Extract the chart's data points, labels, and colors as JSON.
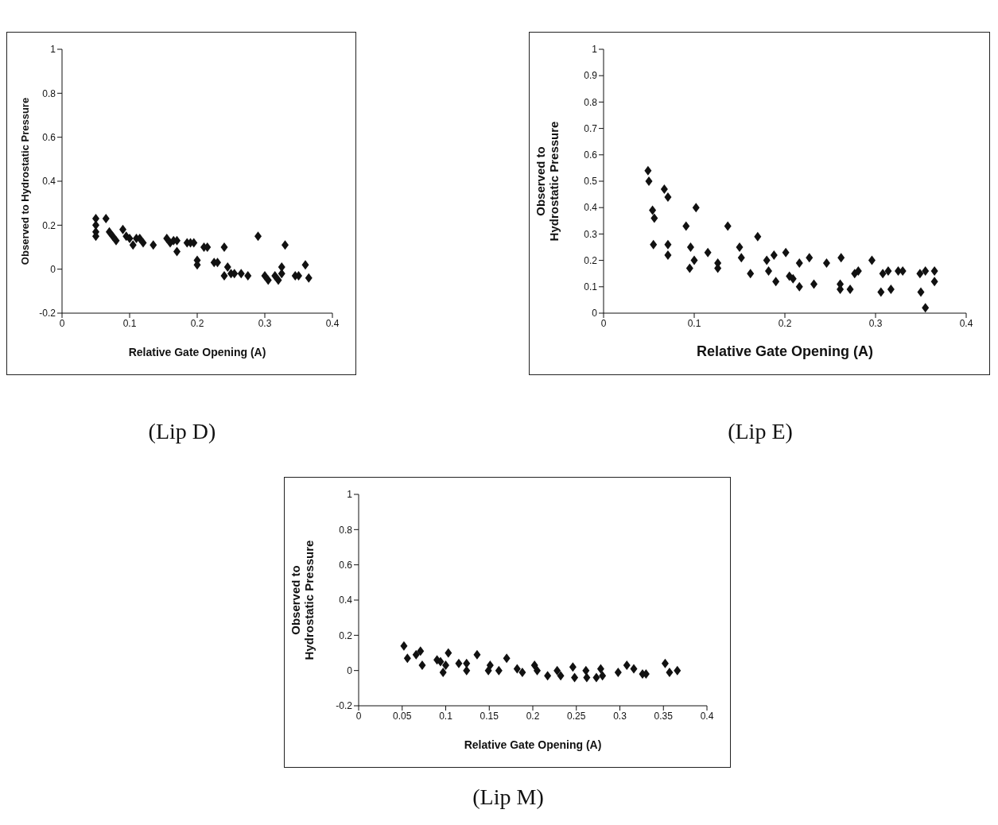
{
  "chart_data": [
    {
      "type": "scatter",
      "title": "(Lip D)",
      "xlabel": "Relative Gate Opening (A)",
      "ylabel": "Observed to Hydrostatic Pressure",
      "marker": "diamond",
      "grid": false,
      "xlim": [
        0,
        0.4
      ],
      "xticks": [
        0,
        0.1,
        0.2,
        0.3,
        0.4
      ],
      "ylim": [
        -0.2,
        1
      ],
      "yticks": [
        -0.2,
        0,
        0.2,
        0.4,
        0.6,
        0.8,
        1
      ],
      "series": [
        {
          "color": "#111111",
          "x": [
            0.05,
            0.05,
            0.05,
            0.05,
            0.065,
            0.07,
            0.075,
            0.08,
            0.09,
            0.095,
            0.1,
            0.105,
            0.11,
            0.115,
            0.12,
            0.135,
            0.155,
            0.16,
            0.165,
            0.17,
            0.17,
            0.185,
            0.19,
            0.195,
            0.2,
            0.2,
            0.21,
            0.215,
            0.225,
            0.23,
            0.24,
            0.24,
            0.245,
            0.25,
            0.255,
            0.265,
            0.275,
            0.29,
            0.3,
            0.305,
            0.315,
            0.32,
            0.325,
            0.325,
            0.33,
            0.345,
            0.35,
            0.36,
            0.365
          ],
          "values": [
            0.23,
            0.2,
            0.17,
            0.15,
            0.23,
            0.17,
            0.15,
            0.13,
            0.18,
            0.15,
            0.14,
            0.11,
            0.14,
            0.14,
            0.12,
            0.11,
            0.14,
            0.12,
            0.13,
            0.08,
            0.13,
            0.12,
            0.12,
            0.12,
            0.04,
            0.02,
            0.1,
            0.1,
            0.03,
            0.03,
            0.1,
            -0.03,
            0.01,
            -0.02,
            -0.02,
            -0.02,
            -0.03,
            0.15,
            -0.03,
            -0.05,
            -0.03,
            -0.05,
            -0.02,
            0.01,
            0.11,
            -0.03,
            -0.03,
            0.02,
            -0.04
          ]
        }
      ]
    },
    {
      "type": "scatter",
      "title": "(Lip E)",
      "xlabel": "Relative Gate Opening (A)",
      "ylabel": "Observed to Hydrostatic Pressure",
      "marker": "diamond",
      "grid": false,
      "xlim": [
        0,
        0.4
      ],
      "xticks": [
        0,
        0.1,
        0.2,
        0.3,
        0.4
      ],
      "ylim": [
        0,
        1
      ],
      "yticks": [
        0,
        0.1,
        0.2,
        0.3,
        0.4,
        0.5,
        0.6,
        0.7,
        0.8,
        0.9,
        1
      ],
      "series": [
        {
          "color": "#111111",
          "x": [
            0.049,
            0.05,
            0.067,
            0.071,
            0.054,
            0.056,
            0.055,
            0.071,
            0.071,
            0.102,
            0.091,
            0.096,
            0.095,
            0.1,
            0.115,
            0.126,
            0.126,
            0.137,
            0.15,
            0.152,
            0.162,
            0.17,
            0.18,
            0.182,
            0.188,
            0.19,
            0.201,
            0.205,
            0.209,
            0.216,
            0.216,
            0.227,
            0.232,
            0.246,
            0.262,
            0.261,
            0.261,
            0.272,
            0.277,
            0.281,
            0.296,
            0.306,
            0.308,
            0.314,
            0.317,
            0.325,
            0.33,
            0.349,
            0.355,
            0.35,
            0.355,
            0.365,
            0.365
          ],
          "values": [
            0.54,
            0.5,
            0.47,
            0.44,
            0.39,
            0.36,
            0.26,
            0.26,
            0.22,
            0.4,
            0.33,
            0.25,
            0.17,
            0.2,
            0.23,
            0.19,
            0.17,
            0.33,
            0.25,
            0.21,
            0.15,
            0.29,
            0.2,
            0.16,
            0.22,
            0.12,
            0.23,
            0.14,
            0.13,
            0.19,
            0.1,
            0.21,
            0.11,
            0.19,
            0.21,
            0.11,
            0.09,
            0.09,
            0.15,
            0.16,
            0.2,
            0.08,
            0.15,
            0.16,
            0.09,
            0.16,
            0.16,
            0.15,
            0.16,
            0.08,
            0.02,
            0.16,
            0.12
          ]
        }
      ]
    },
    {
      "type": "scatter",
      "title": "(Lip M)",
      "xlabel": "Relative Gate Opening (A)",
      "ylabel": "Observed to Hydrostatic Pressure",
      "marker": "diamond",
      "grid": false,
      "xlim": [
        0,
        0.4
      ],
      "xticks": [
        0,
        0.05,
        0.1,
        0.15,
        0.2,
        0.25,
        0.3,
        0.35,
        0.4
      ],
      "ylim": [
        -0.2,
        1
      ],
      "yticks": [
        -0.2,
        0,
        0.2,
        0.4,
        0.6,
        0.8,
        1
      ],
      "series": [
        {
          "color": "#111111",
          "x": [
            0.052,
            0.056,
            0.071,
            0.073,
            0.066,
            0.09,
            0.094,
            0.103,
            0.097,
            0.1,
            0.115,
            0.124,
            0.124,
            0.136,
            0.151,
            0.149,
            0.161,
            0.17,
            0.182,
            0.188,
            0.202,
            0.205,
            0.217,
            0.228,
            0.232,
            0.246,
            0.248,
            0.261,
            0.262,
            0.273,
            0.278,
            0.28,
            0.298,
            0.308,
            0.316,
            0.326,
            0.33,
            0.352,
            0.357,
            0.366
          ],
          "values": [
            0.14,
            0.07,
            0.11,
            0.03,
            0.09,
            0.06,
            0.05,
            0.1,
            -0.01,
            0.03,
            0.04,
            0,
            0.04,
            0.09,
            0.03,
            0,
            0,
            0.07,
            0.01,
            -0.01,
            0.03,
            0,
            -0.03,
            0,
            -0.03,
            0.02,
            -0.04,
            0,
            -0.04,
            -0.04,
            0.01,
            -0.03,
            -0.01,
            0.03,
            0.01,
            -0.02,
            -0.02,
            0.04,
            -0.01,
            0
          ]
        }
      ]
    }
  ]
}
